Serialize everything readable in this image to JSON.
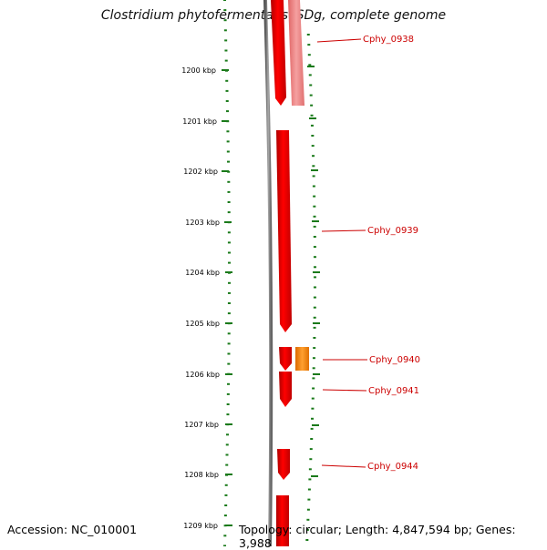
{
  "title": "Clostridium phytofermentans ISDg, complete genome",
  "footer": {
    "accession": "Accession: NC_010001",
    "topology": "Topology: circular; Length: 4,847,594 bp; Genes: 3,988"
  },
  "axis_labels": [
    "1200 kbp",
    "1201 kbp",
    "1202 kbp",
    "1203 kbp",
    "1204 kbp",
    "1205 kbp",
    "1206 kbp",
    "1207 kbp",
    "1208 kbp",
    "1209 kbp"
  ],
  "gene_labels": [
    "Cphy_0938",
    "Cphy_0939",
    "Cphy_0940",
    "Cphy_0941",
    "Cphy_0944"
  ],
  "colors": {
    "gene": "#ff0000",
    "gene_light": "#f08a8a",
    "gene_orange": "#ff8800",
    "backbone": "#888888",
    "ticks": "#1a7a1a",
    "label": "#cc0000"
  }
}
